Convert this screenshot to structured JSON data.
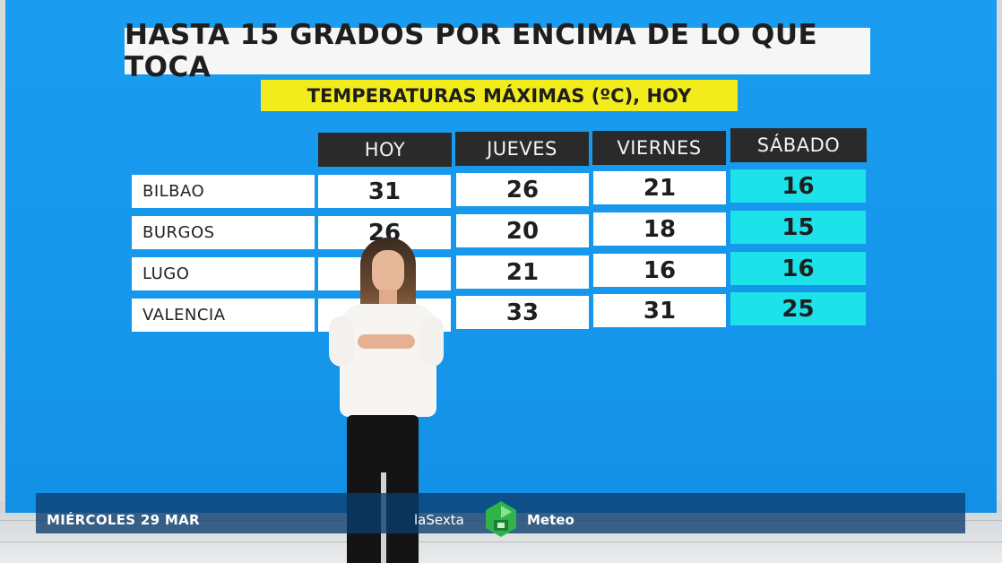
{
  "title": "HASTA 15 GRADOS POR ENCIMA DE LO QUE TOCA",
  "subtitle": "TEMPERATURAS MÁXIMAS (ºC), HOY",
  "table": {
    "columns": [
      "HOY",
      "JUEVES",
      "VIERNES",
      "SÁBADO"
    ],
    "rows": [
      {
        "city": "BILBAO",
        "values": [
          "31",
          "26",
          "21",
          "16"
        ]
      },
      {
        "city": "BURGOS",
        "values": [
          "26",
          "20",
          "18",
          "15"
        ]
      },
      {
        "city": "LUGO",
        "values": [
          "",
          "21",
          "16",
          "16"
        ]
      },
      {
        "city": "VALENCIA",
        "values": [
          "",
          "33",
          "31",
          "25"
        ]
      }
    ],
    "highlight_column_color": "#1ee2ea"
  },
  "lower_third": {
    "date": "MIÉRCOLES 29 MAR",
    "channel": "laSexta",
    "section": "Meteo",
    "logo_icon": "lasexta-six-logo"
  },
  "colors": {
    "screen_blue": "#1597ec",
    "subtitle_yellow": "#f3ec1c",
    "header_dark": "#2a2a2a",
    "logo_green": "#2fb34a"
  }
}
